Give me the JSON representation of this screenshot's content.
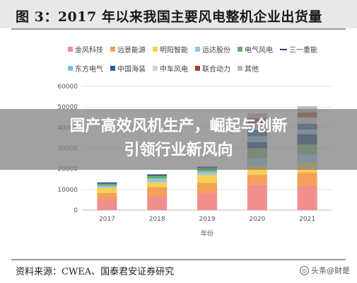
{
  "header": {
    "title": "图 3：2017 年以来我国主要风电整机企业出货量"
  },
  "overlay": {
    "line1": "国产高效风机生产，崛起与创新",
    "line2": "引领行业新风向"
  },
  "source": {
    "text": "资料来源：CWEA、国泰君安证券研究"
  },
  "watermark": {
    "text": "头条@财是"
  },
  "chart_data": {
    "type": "bar",
    "stacked": true,
    "xlabel": "年份",
    "ylabel": "",
    "categories": [
      "2017",
      "2018",
      "2019",
      "2020",
      "2021"
    ],
    "ylim": [
      0,
      60000
    ],
    "yticks": [
      0,
      10000,
      20000,
      30000,
      40000,
      50000,
      60000
    ],
    "ytick_labels": [
      "0",
      "10000",
      "20000",
      "30000",
      "40000",
      "50000",
      "60000"
    ],
    "grid": true,
    "legend_position": "top",
    "series": [
      {
        "name": "金风科技",
        "color": "#f28e8e",
        "values": [
          5300,
          6700,
          8200,
          12300,
          11500
        ]
      },
      {
        "name": "远景能源",
        "color": "#f2a05a",
        "values": [
          3000,
          4500,
          5000,
          4800,
          6500
        ]
      },
      {
        "name": "明阳智能",
        "color": "#f7cf52",
        "values": [
          2500,
          2400,
          4000,
          4300,
          5000
        ]
      },
      {
        "name": "运达股份",
        "color": "#8ec8e8",
        "values": [
          1000,
          1700,
          1500,
          3600,
          4000
        ]
      },
      {
        "name": "电气风电",
        "color": "#6cab6c",
        "values": [
          1100,
          1400,
          1700,
          5000,
          4800
        ]
      },
      {
        "name": "三一重能",
        "color": "#1f3a7a",
        "values": [
          500,
          600,
          700,
          3000,
          5000
        ]
      },
      {
        "name": "东方电气",
        "color": "#7ac0e8",
        "values": [
          0,
          0,
          0,
          2800,
          2200
        ]
      },
      {
        "name": "中国海装",
        "color": "#2a5c9a",
        "values": [
          0,
          0,
          0,
          3100,
          2900
        ]
      },
      {
        "name": "中车风电",
        "color": "#d0d0d8",
        "values": [
          0,
          0,
          0,
          3000,
          3000
        ]
      },
      {
        "name": "联合动力",
        "color": "#a04030",
        "values": [
          0,
          0,
          0,
          2600,
          2400
        ]
      },
      {
        "name": "其他",
        "color": "#b8b8b8",
        "values": [
          0,
          0,
          0,
          2500,
          3000
        ]
      }
    ]
  }
}
